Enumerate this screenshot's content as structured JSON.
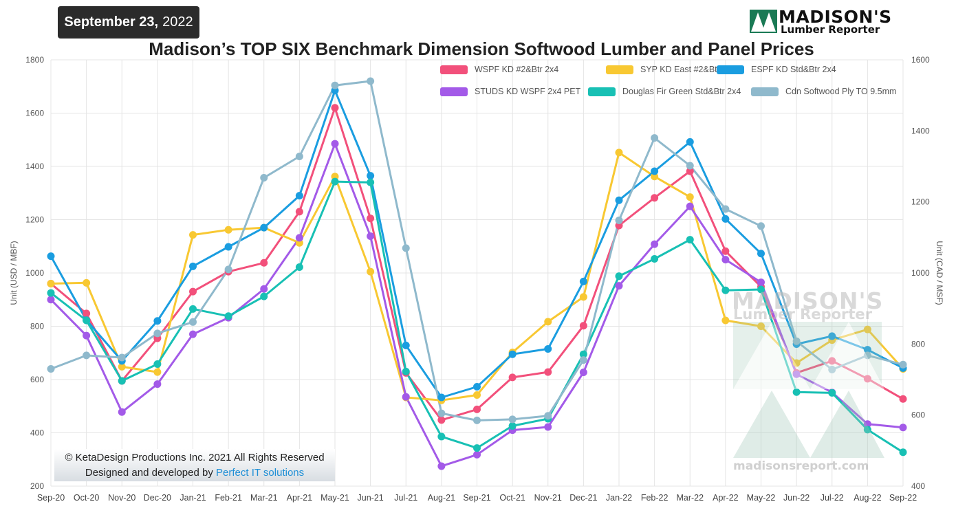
{
  "header": {
    "date_bold": "September 23,",
    "date_year": "2022",
    "logo_line1": "MADISON'S",
    "logo_line2": "Lumber Reporter"
  },
  "footer": {
    "copyright_line": "© KetaDesign Productions Inc. 2021 All Rights Reserved",
    "designed_by": "Designed and developed by",
    "designer_link": "Perfect IT solutions"
  },
  "watermark": {
    "line1": "MADISON'S",
    "line2": "Lumber Reporter",
    "url": "madisonsreport.com"
  },
  "chart_data": {
    "type": "line",
    "title": "Madison’s TOP SIX Benchmark Dimension Softwood Lumber and Panel Prices",
    "ylabel": "Unit (USD / MBF)",
    "y2label": "Unit (CAD / MSF)",
    "ylim": [
      200,
      1800
    ],
    "y_ticks": [
      200,
      400,
      600,
      800,
      1000,
      1200,
      1400,
      1600,
      1800
    ],
    "y2lim": [
      400,
      1600
    ],
    "y2_ticks": [
      400,
      600,
      800,
      1000,
      1200,
      1400,
      1600
    ],
    "grid": true,
    "legend_position": "top-right",
    "categories": [
      "Sep-20",
      "Oct-20",
      "Nov-20",
      "Dec-20",
      "Jan-21",
      "Feb-21",
      "Mar-21",
      "Apr-21",
      "May-21",
      "Jun-21",
      "Jul-21",
      "Aug-21",
      "Sep-21",
      "Oct-21",
      "Nov-21",
      "Dec-21",
      "Jan-22",
      "Feb-22",
      "Mar-22",
      "Apr-22",
      "May-22",
      "Jun-22",
      "Jul-22",
      "Aug-22",
      "Sep-22"
    ],
    "series": [
      {
        "name": "WSPF KD #2&Btr 2x4",
        "color": "#f2507b",
        "axis": "left",
        "values": [
          960,
          848,
          595,
          755,
          930,
          1005,
          1038,
          1230,
          1620,
          1205,
          625,
          448,
          488,
          608,
          628,
          802,
          1178,
          1282,
          1382,
          1082,
          948,
          625,
          670,
          603,
          527
        ]
      },
      {
        "name": "SYP KD East #2&Btr 2x4",
        "color": "#f8c832",
        "axis": "left",
        "values": [
          960,
          963,
          648,
          628,
          1143,
          1162,
          1170,
          1113,
          1362,
          1005,
          533,
          522,
          542,
          702,
          817,
          910,
          1452,
          1362,
          1285,
          822,
          800,
          662,
          748,
          788,
          640
        ]
      },
      {
        "name": "ESPF KD Std&Btr 2x4",
        "color": "#1a9de0",
        "axis": "left",
        "values": [
          1063,
          823,
          670,
          820,
          1025,
          1098,
          1170,
          1290,
          1685,
          1365,
          728,
          533,
          573,
          695,
          715,
          968,
          1273,
          1382,
          1492,
          1203,
          1073,
          733,
          763,
          712,
          643
        ]
      },
      {
        "name": "STUDS KD WSPF 2x4 PET",
        "color": "#a35ae8",
        "axis": "left",
        "values": [
          900,
          765,
          478,
          583,
          770,
          832,
          940,
          1132,
          1485,
          1138,
          535,
          275,
          318,
          410,
          422,
          627,
          952,
          1108,
          1250,
          1050,
          965,
          620,
          552,
          433,
          420
        ]
      },
      {
        "name": "Douglas Fir Green Std&Btr 2x4",
        "color": "#18c0b4",
        "axis": "left",
        "values": [
          925,
          822,
          595,
          658,
          865,
          838,
          912,
          1022,
          1343,
          1340,
          630,
          386,
          343,
          426,
          453,
          695,
          988,
          1053,
          1125,
          935,
          938,
          553,
          550,
          412,
          327
        ]
      },
      {
        "name": "Cdn Softwood Ply TO 9.5mm",
        "color": "#8fb9cc",
        "axis": "right",
        "values": [
          730,
          768,
          762,
          830,
          862,
          1010,
          1268,
          1328,
          1528,
          1540,
          1070,
          605,
          585,
          588,
          598,
          755,
          1148,
          1380,
          1302,
          1180,
          1132,
          808,
          728,
          768,
          742
        ]
      }
    ]
  }
}
